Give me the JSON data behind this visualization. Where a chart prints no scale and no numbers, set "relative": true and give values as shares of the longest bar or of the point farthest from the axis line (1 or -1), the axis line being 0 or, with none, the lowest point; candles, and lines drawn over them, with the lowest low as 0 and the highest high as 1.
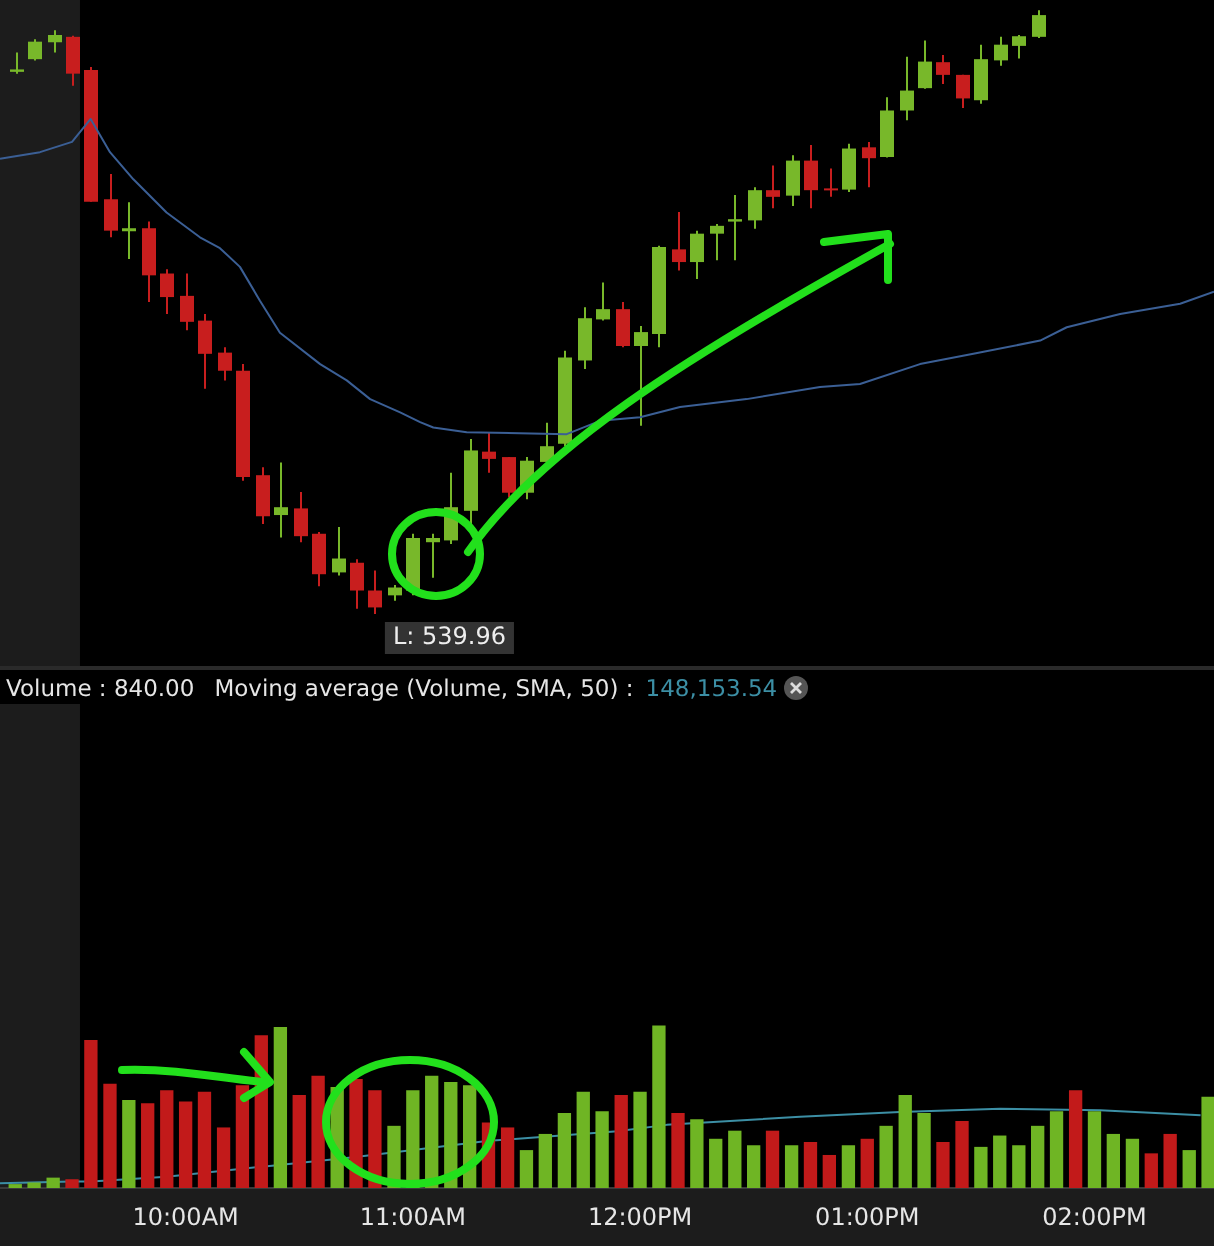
{
  "chart_data": [
    {
      "type": "candlestick",
      "relative": true,
      "tick_labels": false,
      "xlim": [
        9.183,
        14.526
      ],
      "x": [
        9.25,
        9.333,
        9.417,
        9.5,
        9.583,
        9.667,
        9.75,
        9.833,
        9.917,
        10,
        10.083,
        10.167,
        10.25,
        10.333,
        10.417,
        10.5,
        10.583,
        10.667,
        10.75,
        10.833,
        10.917,
        11,
        11.083,
        11.167,
        11.25,
        11.333,
        11.417,
        11.5,
        11.583,
        11.667,
        11.75,
        11.833,
        11.917,
        12,
        12.083,
        12.167,
        12.25,
        12.333,
        12.417,
        12.5,
        12.583,
        12.667,
        12.75,
        12.833,
        12.917,
        13,
        13.083,
        13.167,
        13.25,
        13.333,
        13.417,
        13.5,
        13.583,
        13.667,
        13.75
      ],
      "ohlc": [
        [
          0.898,
          0.93,
          0.895,
          0.902
        ],
        [
          0.919,
          0.952,
          0.917,
          0.948
        ],
        [
          0.947,
          0.967,
          0.93,
          0.959
        ],
        [
          0.956,
          0.958,
          0.875,
          0.895
        ],
        [
          0.901,
          0.906,
          0.683,
          0.683
        ],
        [
          0.687,
          0.729,
          0.624,
          0.635
        ],
        [
          0.634,
          0.682,
          0.588,
          0.639
        ],
        [
          0.639,
          0.65,
          0.517,
          0.561
        ],
        [
          0.564,
          0.571,
          0.497,
          0.525
        ],
        [
          0.527,
          0.564,
          0.47,
          0.484
        ],
        [
          0.486,
          0.497,
          0.373,
          0.431
        ],
        [
          0.433,
          0.442,
          0.387,
          0.403
        ],
        [
          0.403,
          0.414,
          0.221,
          0.227
        ],
        [
          0.23,
          0.243,
          0.149,
          0.162
        ],
        [
          0.164,
          0.251,
          0.127,
          0.177
        ],
        [
          0.175,
          0.202,
          0.119,
          0.129
        ],
        [
          0.133,
          0.136,
          0.046,
          0.066
        ],
        [
          0.069,
          0.144,
          0.064,
          0.092
        ],
        [
          0.085,
          0.091,
          0.009,
          0.039
        ],
        [
          0.039,
          0.072,
          0,
          0.011
        ],
        [
          0.031,
          0.048,
          0.022,
          0.044
        ],
        [
          0.039,
          0.133,
          0.031,
          0.126
        ],
        [
          0.119,
          0.133,
          0.06,
          0.126
        ],
        [
          0.122,
          0.234,
          0.116,
          0.177
        ],
        [
          0.171,
          0.29,
          0.144,
          0.271
        ],
        [
          0.269,
          0.301,
          0.234,
          0.257
        ],
        [
          0.26,
          0.26,
          0.193,
          0.201
        ],
        [
          0.201,
          0.26,
          0.19,
          0.254
        ],
        [
          0.252,
          0.317,
          0.246,
          0.278
        ],
        [
          0.282,
          0.436,
          0.278,
          0.425
        ],
        [
          0.42,
          0.508,
          0.406,
          0.49
        ],
        [
          0.488,
          0.549,
          0.486,
          0.505
        ],
        [
          0.505,
          0.517,
          0.442,
          0.444
        ],
        [
          0.444,
          0.477,
          0.312,
          0.467
        ],
        [
          0.464,
          0.61,
          0.442,
          0.608
        ],
        [
          0.604,
          0.666,
          0.569,
          0.583
        ],
        [
          0.583,
          0.635,
          0.555,
          0.63
        ],
        [
          0.63,
          0.646,
          0.586,
          0.643
        ],
        [
          0.65,
          0.694,
          0.586,
          0.654
        ],
        [
          0.652,
          0.707,
          0.638,
          0.702
        ],
        [
          0.702,
          0.743,
          0.672,
          0.691
        ],
        [
          0.693,
          0.76,
          0.676,
          0.751
        ],
        [
          0.751,
          0.777,
          0.672,
          0.702
        ],
        [
          0.705,
          0.738,
          0.691,
          0.702
        ],
        [
          0.703,
          0.779,
          0.699,
          0.771
        ],
        [
          0.773,
          0.782,
          0.707,
          0.755
        ],
        [
          0.757,
          0.856,
          0.756,
          0.834
        ],
        [
          0.834,
          0.923,
          0.818,
          0.867
        ],
        [
          0.871,
          0.95,
          0.87,
          0.915
        ],
        [
          0.914,
          0.926,
          0.878,
          0.893
        ],
        [
          0.893,
          0.893,
          0.838,
          0.854
        ],
        [
          0.851,
          0.943,
          0.845,
          0.919
        ],
        [
          0.917,
          0.956,
          0.908,
          0.943
        ],
        [
          0.941,
          0.959,
          0.92,
          0.957
        ],
        [
          0.956,
          1,
          0.954,
          0.992
        ]
      ],
      "colors": [
        "#78b82a",
        "#78b82a",
        "#78b82a",
        "#c81e1e",
        "#c81e1e",
        "#c81e1e",
        "#78b82a",
        "#c81e1e",
        "#c81e1e",
        "#c81e1e",
        "#c81e1e",
        "#c81e1e",
        "#c81e1e",
        "#c81e1e",
        "#78b82a",
        "#c81e1e",
        "#c81e1e",
        "#78b82a",
        "#c81e1e",
        "#c81e1e",
        "#78b82a",
        "#78b82a",
        "#78b82a",
        "#78b82a",
        "#78b82a",
        "#c81e1e",
        "#c81e1e",
        "#78b82a",
        "#78b82a",
        "#78b82a",
        "#78b82a",
        "#78b82a",
        "#c81e1e",
        "#78b82a",
        "#78b82a",
        "#c81e1e",
        "#78b82a",
        "#78b82a",
        "#78b82a",
        "#78b82a",
        "#c81e1e",
        "#78b82a",
        "#c81e1e",
        "#c81e1e",
        "#78b82a",
        "#c81e1e",
        "#78b82a",
        "#78b82a",
        "#78b82a",
        "#c81e1e",
        "#c81e1e",
        "#78b82a",
        "#78b82a",
        "#78b82a",
        "#78b82a"
      ],
      "series": [
        {
          "type": "line",
          "color": "#3b5f95",
          "x": [
            9.183,
            9.359,
            9.5,
            9.582,
            9.667,
            9.77,
            9.916,
            10.063,
            10.151,
            10.239,
            10.327,
            10.415,
            10.592,
            10.709,
            10.812,
            10.944,
            11.032,
            11.09,
            11.237,
            11.677,
            11.824,
            12.0,
            12.176,
            12.469,
            12.792,
            12.968,
            13.232,
            13.467,
            13.761,
            13.878,
            14.113,
            14.377,
            14.526
          ],
          "values": [
            0.754,
            0.765,
            0.782,
            0.82,
            0.765,
            0.72,
            0.665,
            0.624,
            0.606,
            0.575,
            0.519,
            0.466,
            0.414,
            0.387,
            0.356,
            0.334,
            0.318,
            0.309,
            0.301,
            0.298,
            0.32,
            0.326,
            0.343,
            0.356,
            0.376,
            0.381,
            0.414,
            0.431,
            0.453,
            0.475,
            0.497,
            0.514,
            0.534
          ]
        }
      ],
      "bands": [
        {
          "axis": "x",
          "from": 9.183,
          "to": 9.535,
          "color": "#1c1c1c"
        }
      ],
      "annotations": [
        {
          "text": "L: 539.96",
          "x": 10.833,
          "y": 0
        }
      ]
    },
    {
      "type": "bar",
      "relative": true,
      "legend": false,
      "tick_labels": "x",
      "xlim": [
        9.183,
        14.526
      ],
      "xticks": [
        {
          "value": 10,
          "label": "10:00AM"
        },
        {
          "value": 11,
          "label": "11:00AM"
        },
        {
          "value": 12,
          "label": "12:00PM"
        },
        {
          "value": 13,
          "label": "01:00PM"
        },
        {
          "value": 14,
          "label": "02:00PM"
        }
      ],
      "x": [
        9.25,
        9.333,
        9.417,
        9.5,
        9.583,
        9.667,
        9.75,
        9.833,
        9.917,
        10,
        10.083,
        10.167,
        10.25,
        10.333,
        10.417,
        10.5,
        10.583,
        10.667,
        10.75,
        10.833,
        10.917,
        11,
        11.083,
        11.167,
        11.25,
        11.333,
        11.417,
        11.5,
        11.583,
        11.667,
        11.75,
        11.833,
        11.917,
        12,
        12.083,
        12.167,
        12.25,
        12.333,
        12.417,
        12.5,
        12.583,
        12.667,
        12.75,
        12.833,
        12.917,
        13,
        13.083,
        13.167,
        13.25,
        13.333,
        13.417,
        13.5,
        13.583,
        13.667,
        13.75,
        13.833,
        13.917,
        14,
        14.083,
        14.167,
        14.25,
        14.333,
        14.417,
        14.5
      ],
      "values": [
        0.02,
        0.03,
        0.06,
        0.05,
        0.91,
        0.64,
        0.54,
        0.52,
        0.6,
        0.53,
        0.59,
        0.37,
        0.63,
        0.94,
        0.99,
        0.57,
        0.69,
        0.62,
        0.67,
        0.6,
        0.38,
        0.6,
        0.69,
        0.65,
        0.63,
        0.4,
        0.37,
        0.23,
        0.33,
        0.46,
        0.59,
        0.47,
        0.57,
        0.59,
        1,
        0.46,
        0.42,
        0.3,
        0.35,
        0.26,
        0.35,
        0.26,
        0.28,
        0.2,
        0.26,
        0.3,
        0.38,
        0.57,
        0.46,
        0.28,
        0.41,
        0.25,
        0.32,
        0.26,
        0.38,
        0.47,
        0.6,
        0.47,
        0.33,
        0.3,
        0.21,
        0.33,
        0.23,
        0.56
      ],
      "colors": [
        "#6fb524",
        "#6fb524",
        "#6fb524",
        "#c21a1a",
        "#c21a1a",
        "#c21a1a",
        "#6fb524",
        "#c21a1a",
        "#c21a1a",
        "#c21a1a",
        "#c21a1a",
        "#c21a1a",
        "#c21a1a",
        "#c21a1a",
        "#6fb524",
        "#c21a1a",
        "#c21a1a",
        "#6fb524",
        "#c21a1a",
        "#c21a1a",
        "#6fb524",
        "#6fb524",
        "#6fb524",
        "#6fb524",
        "#6fb524",
        "#c21a1a",
        "#c21a1a",
        "#6fb524",
        "#6fb524",
        "#6fb524",
        "#6fb524",
        "#6fb524",
        "#c21a1a",
        "#6fb524",
        "#6fb524",
        "#c21a1a",
        "#6fb524",
        "#6fb524",
        "#6fb524",
        "#6fb524",
        "#c21a1a",
        "#6fb524",
        "#c21a1a",
        "#c21a1a",
        "#6fb524",
        "#c21a1a",
        "#6fb524",
        "#6fb524",
        "#6fb524",
        "#c21a1a",
        "#c21a1a",
        "#6fb524",
        "#6fb524",
        "#6fb524",
        "#6fb524",
        "#6fb524",
        "#c21a1a",
        "#6fb524",
        "#6fb524",
        "#6fb524",
        "#c21a1a",
        "#c21a1a",
        "#6fb524",
        "#6fb524"
      ],
      "series": [
        {
          "type": "line",
          "color": "#3c8fa5",
          "x": [
            9.183,
            9.5,
            9.585,
            9.916,
            10.327,
            10.739,
            11.325,
            11.9,
            12.117,
            12.704,
            13.144,
            13.585,
            14.025,
            14.467
          ],
          "values": [
            0.03,
            0.04,
            0.04,
            0.07,
            0.13,
            0.19,
            0.29,
            0.35,
            0.39,
            0.44,
            0.47,
            0.49,
            0.48,
            0.45
          ]
        }
      ],
      "bands": [
        {
          "axis": "x",
          "from": 9.183,
          "to": 9.535,
          "color": "#1c1c1c"
        }
      ],
      "annotations": [
        "Volume : 840.00",
        "Moving average (Volume, SMA, 50) :",
        "148,153.54"
      ]
    }
  ]
}
